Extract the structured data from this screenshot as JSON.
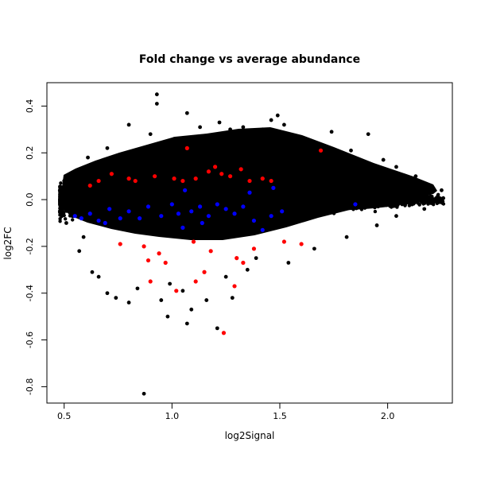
{
  "chart_data": {
    "type": "scatter",
    "title": "Fold change vs average abundance",
    "xlabel": "log2Signal",
    "ylabel": "log2FC",
    "xlim": [
      0.42,
      2.3
    ],
    "ylim": [
      -0.87,
      0.5
    ],
    "xticks": [
      0.5,
      1.0,
      1.5,
      2.0
    ],
    "xtick_labels": [
      "0.5",
      "1.0",
      "1.5",
      "2.0"
    ],
    "yticks": [
      -0.8,
      -0.6,
      -0.4,
      -0.2,
      0.0,
      0.2,
      0.4
    ],
    "ytick_labels": [
      "-0.8",
      "-0.6",
      "-0.4",
      "-0.2",
      "0.0",
      "0.2",
      "0.4"
    ],
    "grid": false,
    "colors": {
      "background": "#000000",
      "up": "#ff0000",
      "down": "#0000ff"
    },
    "bulk": {
      "color": "#000000",
      "points": [
        [
          0.93,
          0.45
        ],
        [
          0.93,
          0.41
        ],
        [
          1.07,
          0.37
        ],
        [
          1.22,
          0.33
        ],
        [
          1.46,
          0.34
        ],
        [
          1.49,
          0.36
        ],
        [
          0.8,
          0.32
        ],
        [
          1.42,
          0.3
        ],
        [
          1.52,
          0.32
        ],
        [
          1.74,
          0.29
        ],
        [
          1.91,
          0.28
        ],
        [
          1.27,
          0.3
        ],
        [
          1.13,
          0.31
        ],
        [
          0.9,
          0.28
        ],
        [
          1.33,
          0.31
        ],
        [
          0.7,
          0.22
        ],
        [
          1.83,
          0.21
        ],
        [
          1.98,
          0.17
        ],
        [
          2.04,
          0.14
        ],
        [
          0.61,
          0.18
        ],
        [
          2.13,
          0.1
        ],
        [
          2.2,
          0.06
        ],
        [
          2.25,
          0.04
        ],
        [
          1.01,
          0.26
        ],
        [
          1.17,
          0.27
        ],
        [
          0.98,
          -0.5
        ],
        [
          1.07,
          -0.53
        ],
        [
          1.09,
          -0.47
        ],
        [
          1.21,
          -0.55
        ],
        [
          1.28,
          -0.42
        ],
        [
          0.87,
          -0.83
        ],
        [
          0.8,
          -0.44
        ],
        [
          0.74,
          -0.42
        ],
        [
          0.7,
          -0.4
        ],
        [
          0.95,
          -0.43
        ],
        [
          0.84,
          -0.38
        ],
        [
          1.05,
          -0.39
        ],
        [
          1.16,
          -0.43
        ],
        [
          0.63,
          -0.31
        ],
        [
          0.66,
          -0.33
        ],
        [
          0.99,
          -0.36
        ],
        [
          1.25,
          -0.33
        ],
        [
          1.39,
          -0.25
        ],
        [
          1.54,
          -0.27
        ],
        [
          0.57,
          -0.22
        ],
        [
          1.66,
          -0.21
        ],
        [
          1.81,
          -0.16
        ],
        [
          1.95,
          -0.11
        ],
        [
          2.04,
          -0.07
        ],
        [
          2.17,
          -0.04
        ],
        [
          0.48,
          -0.05
        ],
        [
          0.48,
          0.04
        ],
        [
          0.5,
          0.08
        ],
        [
          0.51,
          -0.1
        ],
        [
          0.56,
          0.12
        ],
        [
          0.59,
          -0.16
        ],
        [
          1.6,
          0.25
        ],
        [
          1.35,
          -0.3
        ],
        [
          1.12,
          0.2
        ],
        [
          0.88,
          0.18
        ]
      ]
    },
    "up": {
      "color": "#ff0000",
      "points": [
        [
          1.24,
          -0.57
        ],
        [
          1.29,
          -0.37
        ],
        [
          1.02,
          -0.39
        ],
        [
          1.11,
          -0.35
        ],
        [
          0.9,
          -0.35
        ],
        [
          0.89,
          -0.26
        ],
        [
          0.94,
          -0.23
        ],
        [
          0.97,
          -0.27
        ],
        [
          1.1,
          -0.18
        ],
        [
          1.15,
          -0.31
        ],
        [
          1.18,
          -0.22
        ],
        [
          1.3,
          -0.25
        ],
        [
          1.33,
          -0.27
        ],
        [
          1.38,
          -0.21
        ],
        [
          1.52,
          -0.18
        ],
        [
          1.6,
          -0.19
        ],
        [
          0.76,
          -0.19
        ],
        [
          0.87,
          -0.2
        ],
        [
          0.72,
          0.11
        ],
        [
          0.8,
          0.09
        ],
        [
          0.83,
          0.08
        ],
        [
          0.92,
          0.1
        ],
        [
          1.01,
          0.09
        ],
        [
          1.05,
          0.08
        ],
        [
          1.11,
          0.09
        ],
        [
          1.17,
          0.12
        ],
        [
          1.2,
          0.14
        ],
        [
          1.23,
          0.11
        ],
        [
          1.27,
          0.1
        ],
        [
          1.32,
          0.13
        ],
        [
          1.36,
          0.08
        ],
        [
          1.42,
          0.09
        ],
        [
          1.46,
          0.08
        ],
        [
          1.69,
          0.21
        ],
        [
          1.07,
          0.22
        ],
        [
          0.62,
          0.06
        ],
        [
          0.66,
          0.08
        ]
      ]
    },
    "down": {
      "color": "#0000ff",
      "points": [
        [
          0.55,
          -0.07
        ],
        [
          0.58,
          -0.08
        ],
        [
          0.62,
          -0.06
        ],
        [
          0.66,
          -0.09
        ],
        [
          0.71,
          -0.04
        ],
        [
          0.76,
          -0.08
        ],
        [
          0.8,
          -0.05
        ],
        [
          0.85,
          -0.08
        ],
        [
          0.89,
          -0.03
        ],
        [
          0.95,
          -0.07
        ],
        [
          1.0,
          -0.02
        ],
        [
          1.03,
          -0.06
        ],
        [
          1.06,
          0.04
        ],
        [
          1.09,
          -0.05
        ],
        [
          1.13,
          -0.03
        ],
        [
          1.17,
          -0.07
        ],
        [
          1.21,
          -0.02
        ],
        [
          1.25,
          -0.04
        ],
        [
          1.29,
          -0.06
        ],
        [
          1.33,
          -0.03
        ],
        [
          1.38,
          -0.09
        ],
        [
          1.42,
          -0.13
        ],
        [
          1.46,
          -0.07
        ],
        [
          1.51,
          -0.05
        ],
        [
          1.85,
          -0.02
        ],
        [
          1.05,
          -0.12
        ],
        [
          1.14,
          -0.1
        ],
        [
          1.36,
          0.03
        ],
        [
          1.47,
          0.05
        ],
        [
          0.69,
          -0.1
        ]
      ]
    }
  }
}
